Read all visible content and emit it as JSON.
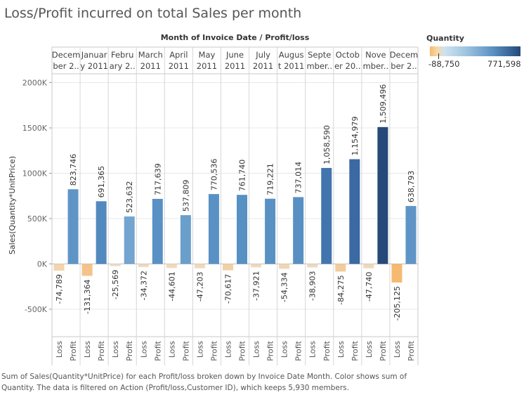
{
  "title": "Loss/Profit incurred on total Sales per month",
  "footer": "Sum of Sales(Quantity*UnitPrice) for each Profit/loss broken down by Invoice Date Month.  Color shows sum of Quantity. The data is filtered on Action (Profit/loss,Customer ID), which keeps 5,930 members.",
  "legend": {
    "title": "Quantity",
    "min_label": "-88,750",
    "max_label": "771,598",
    "color_low": "#f5b971",
    "color_high": "#24497a"
  },
  "chart_data": {
    "type": "bar",
    "column_header": "Month of Invoice Date  /  Profit/loss",
    "ylabel": "Sales(Quantity*UnitPrice)",
    "ylim": [
      -800000,
      2200000
    ],
    "yticks": [
      {
        "value": 2000000,
        "label": "2000K"
      },
      {
        "value": 1500000,
        "label": "1500K"
      },
      {
        "value": 1000000,
        "label": "1000K"
      },
      {
        "value": 500000,
        "label": "500K"
      },
      {
        "value": 0,
        "label": "0K"
      },
      {
        "value": -500000,
        "label": "-500K"
      }
    ],
    "subcategories": [
      "Loss",
      "Profit"
    ],
    "months": [
      {
        "label": [
          "Decem",
          "ber 2.."
        ],
        "loss": -74789,
        "loss_label": "-74,789",
        "profit": 823746,
        "profit_label": "823,746",
        "loss_color": "#f2d4ae",
        "profit_color": "#5f95c6"
      },
      {
        "label": [
          "Januar",
          "y 2011"
        ],
        "loss": -131364,
        "loss_label": "-131,364",
        "profit": 691365,
        "profit_label": "691,365",
        "loss_color": "#f4c38a",
        "profit_color": "#5289bf"
      },
      {
        "label": [
          "Febru",
          "ary 2.."
        ],
        "loss": -25569,
        "loss_label": "-25,569",
        "profit": 523632,
        "profit_label": "523,632",
        "loss_color": "#ecdfca",
        "profit_color": "#74a5d0"
      },
      {
        "label": [
          "March",
          "2011"
        ],
        "loss": -34372,
        "loss_label": "-34,372",
        "profit": 717639,
        "profit_label": "717,639",
        "loss_color": "#eed9c0",
        "profit_color": "#5a91c4"
      },
      {
        "label": [
          "April",
          "2011"
        ],
        "loss": -44601,
        "loss_label": "-44,601",
        "profit": 537809,
        "profit_label": "537,809",
        "loss_color": "#efd8bc",
        "profit_color": "#6a9fcc"
      },
      {
        "label": [
          "May",
          "2011"
        ],
        "loss": -47203,
        "loss_label": "-47,203",
        "profit": 770536,
        "profit_label": "770,536",
        "loss_color": "#efd8bb",
        "profit_color": "#5a91c4"
      },
      {
        "label": [
          "June",
          "2011"
        ],
        "loss": -70617,
        "loss_label": "-70,617",
        "profit": 761740,
        "profit_label": "761,740",
        "loss_color": "#f2d0a6",
        "profit_color": "#5790c3"
      },
      {
        "label": [
          "July",
          "2011"
        ],
        "loss": -37921,
        "loss_label": "-37,921",
        "profit": 719221,
        "profit_label": "719,221",
        "loss_color": "#eed9c0",
        "profit_color": "#5a91c4"
      },
      {
        "label": [
          "Augus",
          "t 2011"
        ],
        "loss": -54334,
        "loss_label": "-54,334",
        "profit": 737014,
        "profit_label": "737,014",
        "loss_color": "#f0d5b5",
        "profit_color": "#5990c3"
      },
      {
        "label": [
          "Septe",
          "mber.."
        ],
        "loss": -38903,
        "loss_label": "-38,903",
        "profit": 1058590,
        "profit_label": "1,058,590",
        "loss_color": "#eed9c0",
        "profit_color": "#4275ad"
      },
      {
        "label": [
          "Octob",
          "er 20.."
        ],
        "loss": -84275,
        "loss_label": "-84,275",
        "profit": 1154979,
        "profit_label": "1,154,979",
        "loss_color": "#f2cc9c",
        "profit_color": "#3a69a3"
      },
      {
        "label": [
          "Nove",
          "mber.."
        ],
        "loss": -47740,
        "loss_label": "-47,740",
        "profit": 1509496,
        "profit_label": "1,509,496",
        "loss_color": "#efd8bb",
        "profit_color": "#26497a"
      },
      {
        "label": [
          "Decem",
          "ber 2.."
        ],
        "loss": -205125,
        "loss_label": "-205,125",
        "profit": 638793,
        "profit_label": "638,793",
        "loss_color": "#f5b971",
        "profit_color": "#5f95c6"
      }
    ]
  }
}
